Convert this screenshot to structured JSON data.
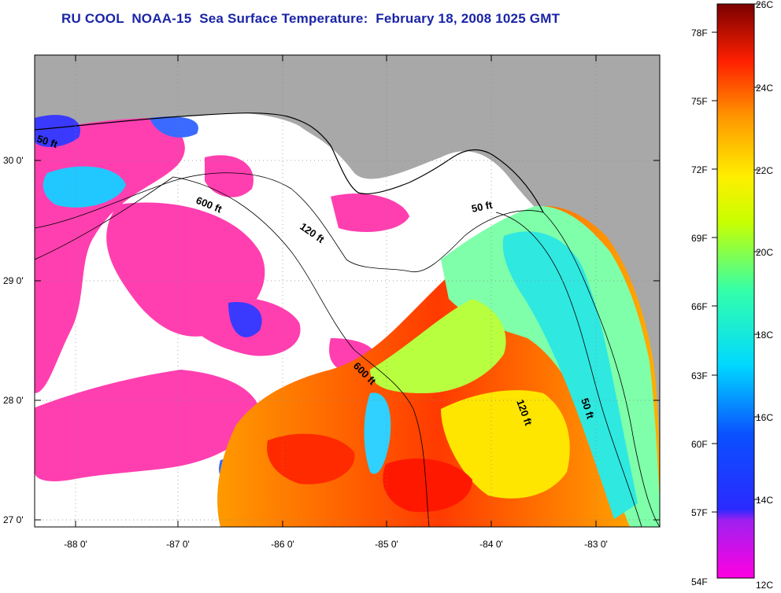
{
  "title": "RU COOL  NOAA-15  Sea Surface Temperature:  February 18, 2008 1025 GMT",
  "map": {
    "lat_labels": [
      "30 0'",
      "29 0'",
      "28 0'",
      "27 0'"
    ],
    "lon_labels": [
      "-88 0'",
      "-87 0'",
      "-86 0'",
      "-85 0'",
      "-84 0'",
      "-83 0'"
    ],
    "isobath_labels": [
      {
        "id": "50-ft-west",
        "text": "50 ft"
      },
      {
        "id": "600-ft-north",
        "text": "600 ft"
      },
      {
        "id": "120-ft-north",
        "text": "120 ft"
      },
      {
        "id": "50-ft-east",
        "text": "50 ft"
      },
      {
        "id": "600-ft-south",
        "text": "600 ft"
      },
      {
        "id": "120-ft-south",
        "text": "120 ft"
      },
      {
        "id": "50-ft-south",
        "text": "50 ft"
      }
    ],
    "colors": {
      "land": "#a8a8a8",
      "no_data": "#ffffff",
      "cloud": "#ff3fb0"
    }
  },
  "colorbar": {
    "fahrenheit_labels": [
      "78F",
      "75F",
      "72F",
      "69F",
      "66F",
      "63F",
      "60F",
      "57F",
      "54F"
    ],
    "celsius_labels": [
      "26C",
      "24C",
      "22C",
      "20C",
      "18C",
      "16C",
      "14C",
      "12C"
    ]
  }
}
